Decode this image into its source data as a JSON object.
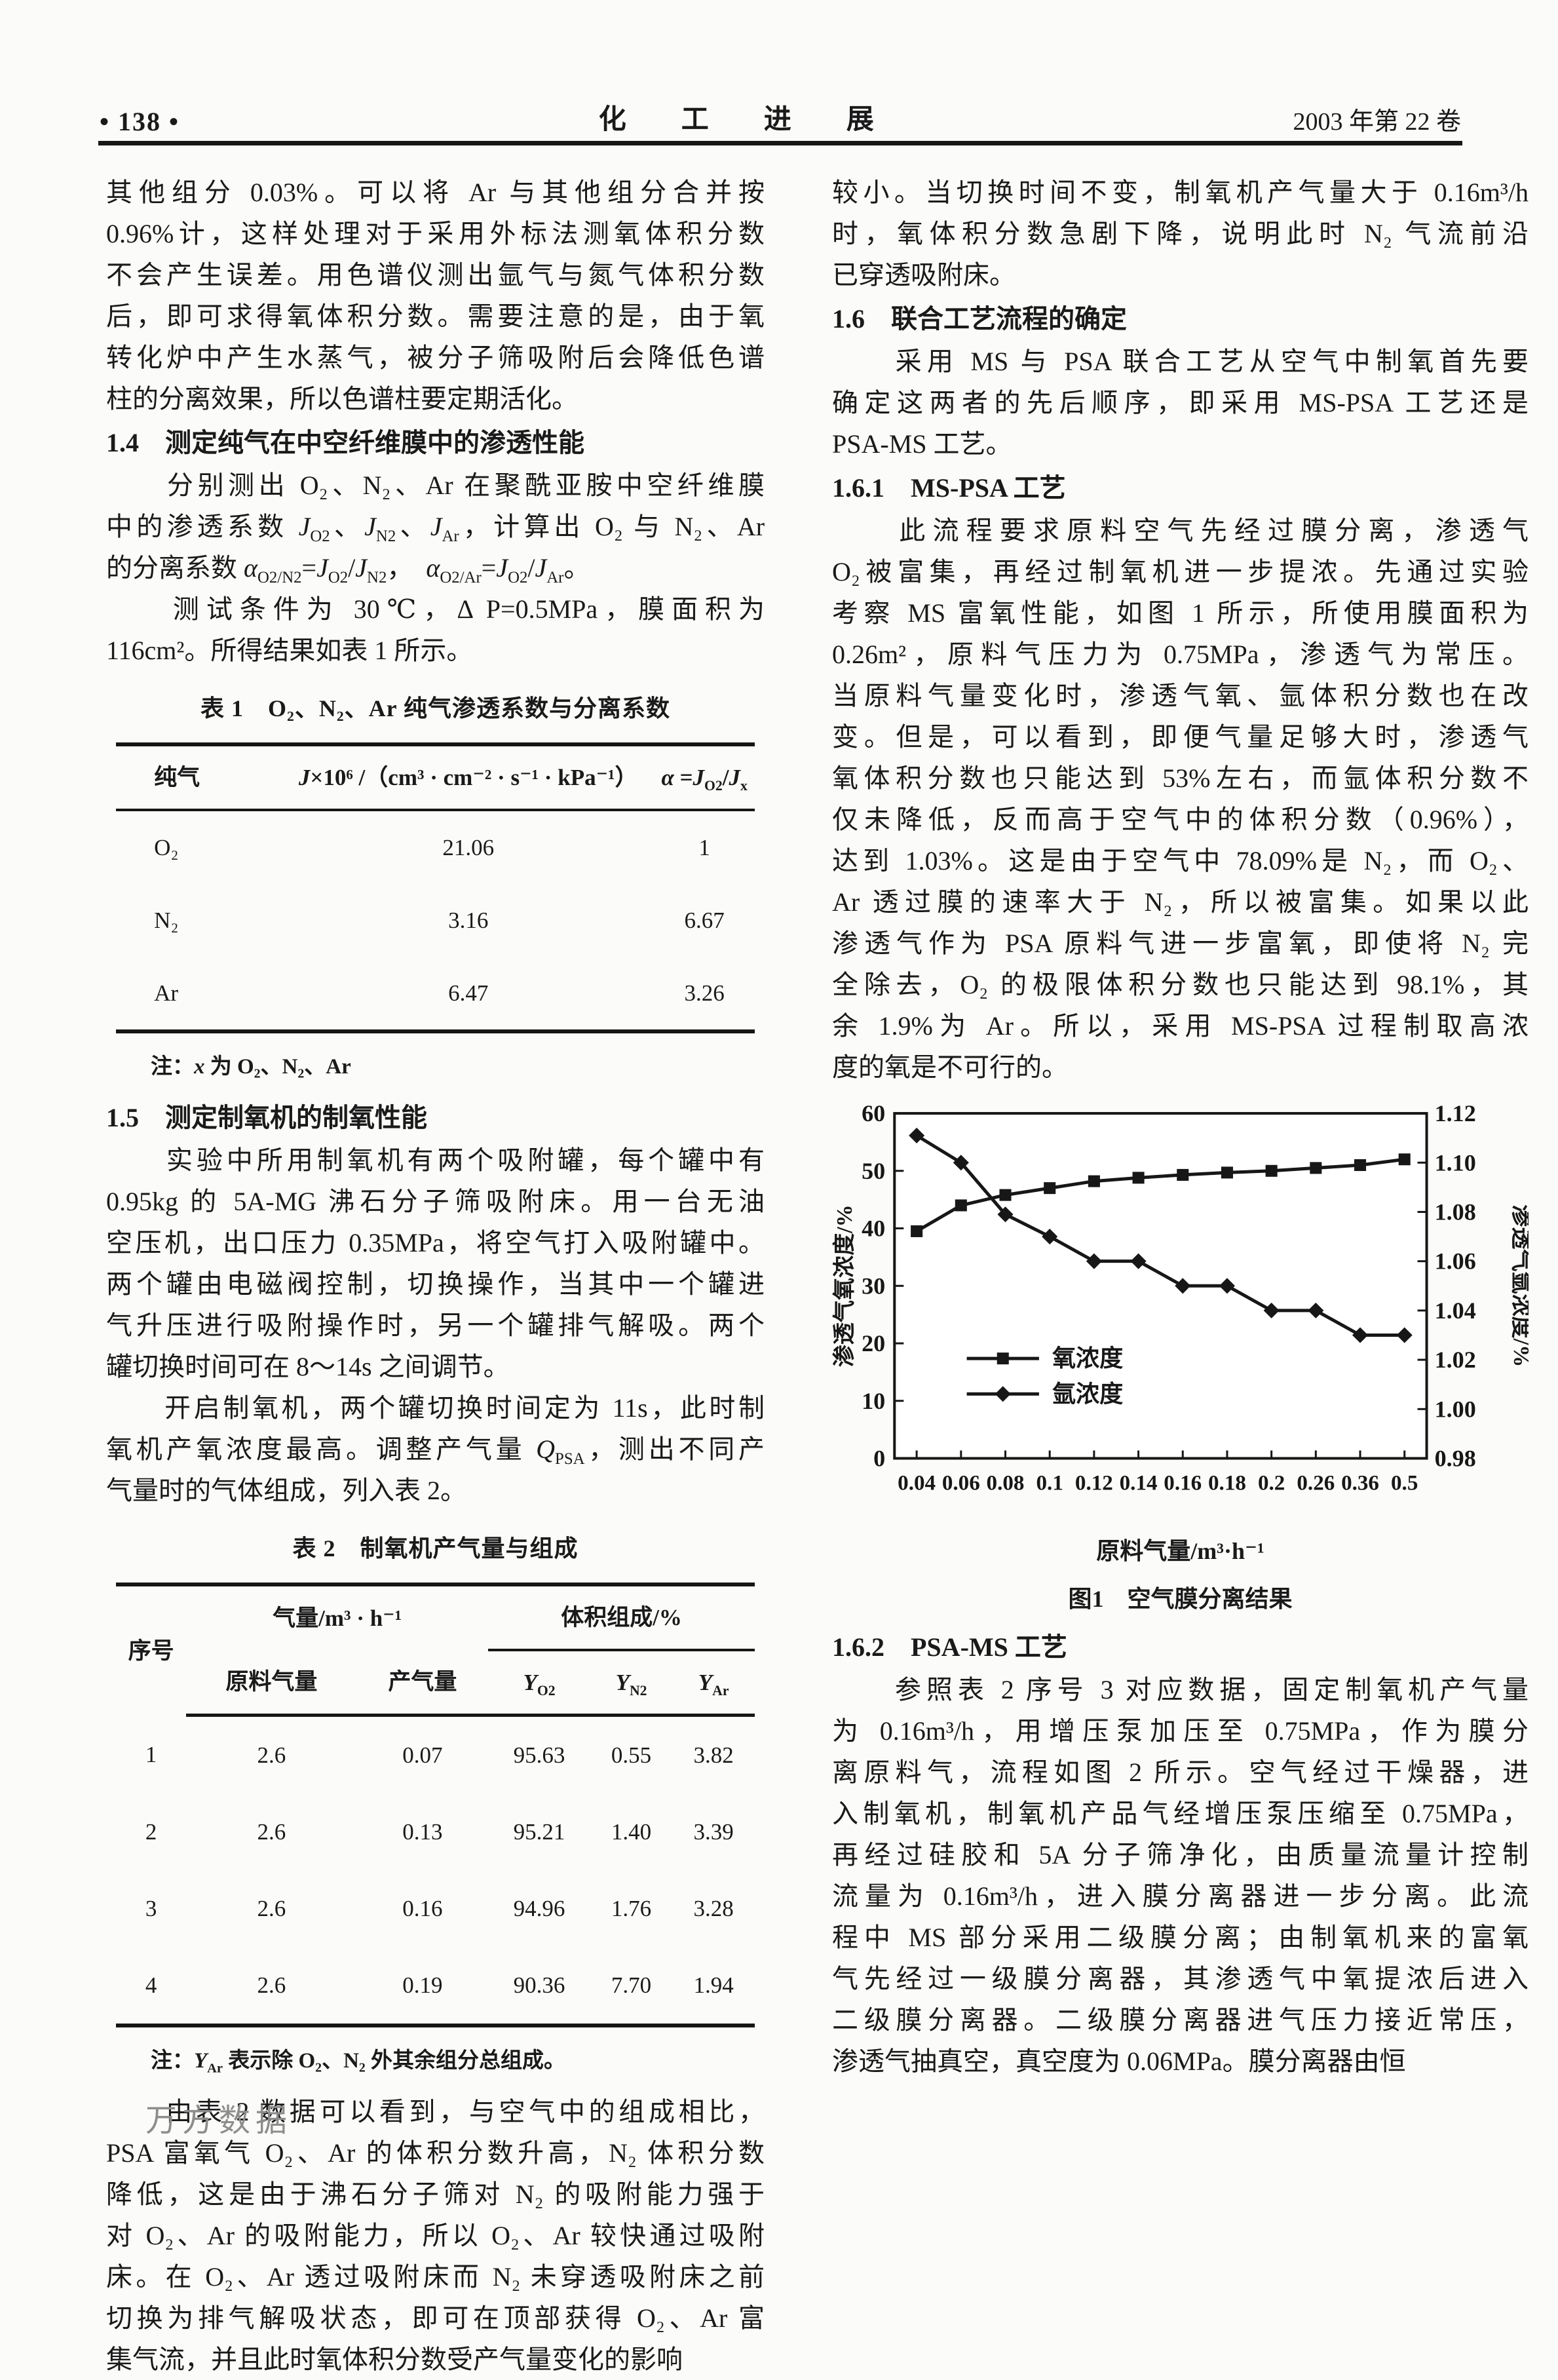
{
  "header": {
    "page_number": "• 138 •",
    "journal": "化　　工　　进　　展",
    "issue": "2003 年第 22 卷"
  },
  "left_column": {
    "para1_lines": [
      "其他组分 0.03%。可以将 Ar 与其他组分合并按",
      "0.96%计，这样处理对于采用外标法测氧体积分数",
      "不会产生误差。用色谱仪测出氩气与氮气体积分数",
      "后，即可求得氧体积分数。需要注意的是，由于氧",
      "转化炉中产生水蒸气，被分子筛吸附后会降低色谱",
      "柱的分离效果，所以色谱柱要定期活化。"
    ],
    "sec14_heading": "1.4　测定纯气在中空纤维膜中的渗透性能",
    "para2a_lines": [
      "　　分别测出 O₂、N₂、Ar 在聚酰亚胺中空纤维膜",
      "中的渗透系数 <i>J</i><sub>O2</sub>、<i>J</i><sub>N2</sub>、<i>J</i><sub>Ar</sub>，计算出 O₂ 与 N₂、Ar",
      "的分离系数 <i>α</i><sub>O2/N2</sub>=<i>J</i><sub>O2</sub>/<i>J</i><sub>N2</sub>，　<i>α</i><sub>O2/Ar</sub>=<i>J</i><sub>O2</sub>/<i>J</i><sub>Ar</sub>。"
    ],
    "para2b_lines": [
      "　　测试条件为 30℃，Δ P=0.5MPa，膜面积为",
      "116cm²。所得结果如表 1 所示。"
    ],
    "table1": {
      "caption": "表 1　O₂、N₂、Ar 纯气渗透系数与分离系数",
      "col_gas": "纯气",
      "col_j": "<i>J</i>×10⁶ /（cm³ · cm⁻² · s⁻¹ · kPa⁻¹）",
      "col_alpha": "<i>α</i> =<i>J</i><sub>O2</sub>/<i>J</i><sub>x</sub>",
      "rows": [
        [
          "O₂",
          "21.06",
          "1"
        ],
        [
          "N₂",
          "3.16",
          "6.67"
        ],
        [
          "Ar",
          "6.47",
          "3.26"
        ]
      ],
      "note": "注：<i>x</i> 为 O₂、N₂、Ar"
    },
    "sec15_heading": "1.5　测定制氧机的制氧性能",
    "para3_lines": [
      "　　实验中所用制氧机有两个吸附罐，每个罐中有",
      "0.95kg 的 5A-MG 沸石分子筛吸附床。用一台无油",
      "空压机，出口压力 0.35MPa，将空气打入吸附罐中。",
      "两个罐由电磁阀控制，切换操作，当其中一个罐进",
      "气升压进行吸附操作时，另一个罐排气解吸。两个",
      "罐切换时间可在 8～14s 之间调节。"
    ],
    "para4_lines": [
      "　　开启制氧机，两个罐切换时间定为 11s，此时制",
      "氧机产氧浓度最高。调整产气量 <i>Q</i><sub>PSA</sub>，测出不同产",
      "气量时的气体组成，列入表 2。"
    ],
    "table2": {
      "caption": "表 2　制氧机产气量与组成",
      "col_index": "序号",
      "col_flow_group": "气量/m³ · h⁻¹",
      "col_feed": "原料气量",
      "col_product": "产气量",
      "col_comp_group": "体积组成/%",
      "col_yo2": "<i>Y</i><sub>O2</sub>",
      "col_yn2": "<i>Y</i><sub>N2</sub>",
      "col_yar": "<i>Y</i><sub>Ar</sub>",
      "rows": [
        [
          "1",
          "2.6",
          "0.07",
          "95.63",
          "0.55",
          "3.82"
        ],
        [
          "2",
          "2.6",
          "0.13",
          "95.21",
          "1.40",
          "3.39"
        ],
        [
          "3",
          "2.6",
          "0.16",
          "94.96",
          "1.76",
          "3.28"
        ],
        [
          "4",
          "2.6",
          "0.19",
          "90.36",
          "7.70",
          "1.94"
        ]
      ],
      "note": "注：<i>Y</i><sub>Ar</sub> 表示除 O₂、N₂ 外其余组分总组成。"
    },
    "para5_lines": [
      "　　由表 2 数据可以看到，与空气中的组成相比，",
      "PSA 富氧气 O₂、Ar 的体积分数升高，N₂ 体积分数",
      "降低，这是由于沸石分子筛对 N₂ 的吸附能力强于",
      "对 O₂、Ar 的吸附能力，所以 O₂、Ar 较快通过吸附",
      "床。在 O₂、Ar 透过吸附床而 N₂ 未穿透吸附床之前",
      "切换为排气解吸状态，即可在顶部获得 O₂、Ar 富",
      "集气流，并且此时氧体积分数受产气量变化的影响"
    ]
  },
  "right_column": {
    "para1_lines": [
      "较小。当切换时间不变，制氧机产气量大于 0.16m³/h",
      "时，氧体积分数急剧下降，说明此时 N₂ 气流前沿",
      "已穿透吸附床。"
    ],
    "sec16_heading": "1.6　联合工艺流程的确定",
    "para2_lines": [
      "　　采用 MS 与 PSA 联合工艺从空气中制氧首先要",
      "确定这两者的先后顺序，即采用 MS-PSA 工艺还是",
      "PSA-MS 工艺。"
    ],
    "sec161_heading": "1.6.1　MS-PSA 工艺",
    "para3_lines": [
      "　　此流程要求原料空气先经过膜分离，渗透气",
      "O₂被富集，再经过制氧机进一步提浓。先通过实验",
      "考察 MS 富氧性能，如图 1 所示，所使用膜面积为",
      "0.26m²，原料气压力为 0.75MPa，渗透气为常压。",
      "当原料气量变化时，渗透气氧、氩体积分数也在改",
      "变。但是，可以看到，即便气量足够大时，渗透气",
      "氧体积分数也只能达到 53%左右，而氩体积分数不",
      "仅未降低，反而高于空气中的体积分数（0.96%），",
      "达到 1.03%。这是由于空气中 78.09%是 N₂，而 O₂、",
      "Ar 透过膜的速率大于 N₂，所以被富集。如果以此",
      "渗透气作为 PSA 原料气进一步富氧，即使将 N₂ 完",
      "全除去，O₂ 的极限体积分数也只能达到 98.1%，其",
      "余 1.9%为 Ar。所以，采用 MS-PSA 过程制取高浓",
      "度的氧是不可行的。"
    ],
    "sec162_heading": "1.6.2　PSA-MS 工艺",
    "para4_lines": [
      "　　参照表 2 序号 3 对应数据，固定制氧机产气量",
      "为 0.16m³/h，用增压泵加压至 0.75MPa，作为膜分",
      "离原料气，流程如图 2 所示。空气经过干燥器，进",
      "入制氧机，制氧机产品气经增压泵压缩至 0.75MPa，",
      "再经过硅胶和 5A 分子筛净化，由质量流量计控制",
      "流量为 0.16m³/h，进入膜分离器进一步分离。此流",
      "程中 MS 部分采用二级膜分离；由制氧机来的富氧",
      "气先经过一级膜分离器，其渗透气中氧提浓后进入",
      "二级膜分离器。二级膜分离器进气压力接近常压，",
      "渗透气抽真空，真空度为 0.06MPa。膜分离器由恒"
    ]
  },
  "watermark": "万方数据",
  "chart_data": {
    "type": "line",
    "title": "图1　空气膜分离结果",
    "caption": "图1　空气膜分离结果",
    "xlabel": "原料气量/m³·h⁻¹",
    "categories": [
      "0.04",
      "0.06",
      "0.08",
      "0.1",
      "0.12",
      "0.14",
      "0.16",
      "0.18",
      "0.2",
      "0.26",
      "0.36",
      "0.5"
    ],
    "series": [
      {
        "name": "氧浓度",
        "axis": "left",
        "marker": "square",
        "values": [
          39.5,
          44,
          45.8,
          47,
          48.2,
          48.8,
          49.3,
          49.7,
          50,
          50.5,
          51,
          52
        ]
      },
      {
        "name": "氩浓度",
        "axis": "right",
        "marker": "diamond",
        "values": [
          1.111,
          1.1,
          1.079,
          1.07,
          1.06,
          1.06,
          1.05,
          1.05,
          1.04,
          1.04,
          1.03,
          1.03
        ]
      }
    ],
    "left_axis": {
      "label": "渗透气氧浓度/%",
      "min": 0,
      "max": 60,
      "ticks": [
        0,
        10,
        20,
        30,
        40,
        50,
        60
      ]
    },
    "right_axis": {
      "label": "渗透气氩浓度/%",
      "min": 0.98,
      "max": 1.12,
      "ticks": [
        0.98,
        1.0,
        1.02,
        1.04,
        1.06,
        1.08,
        1.1,
        1.12
      ]
    },
    "grid": false,
    "legend_position": "inside-left-middle"
  }
}
